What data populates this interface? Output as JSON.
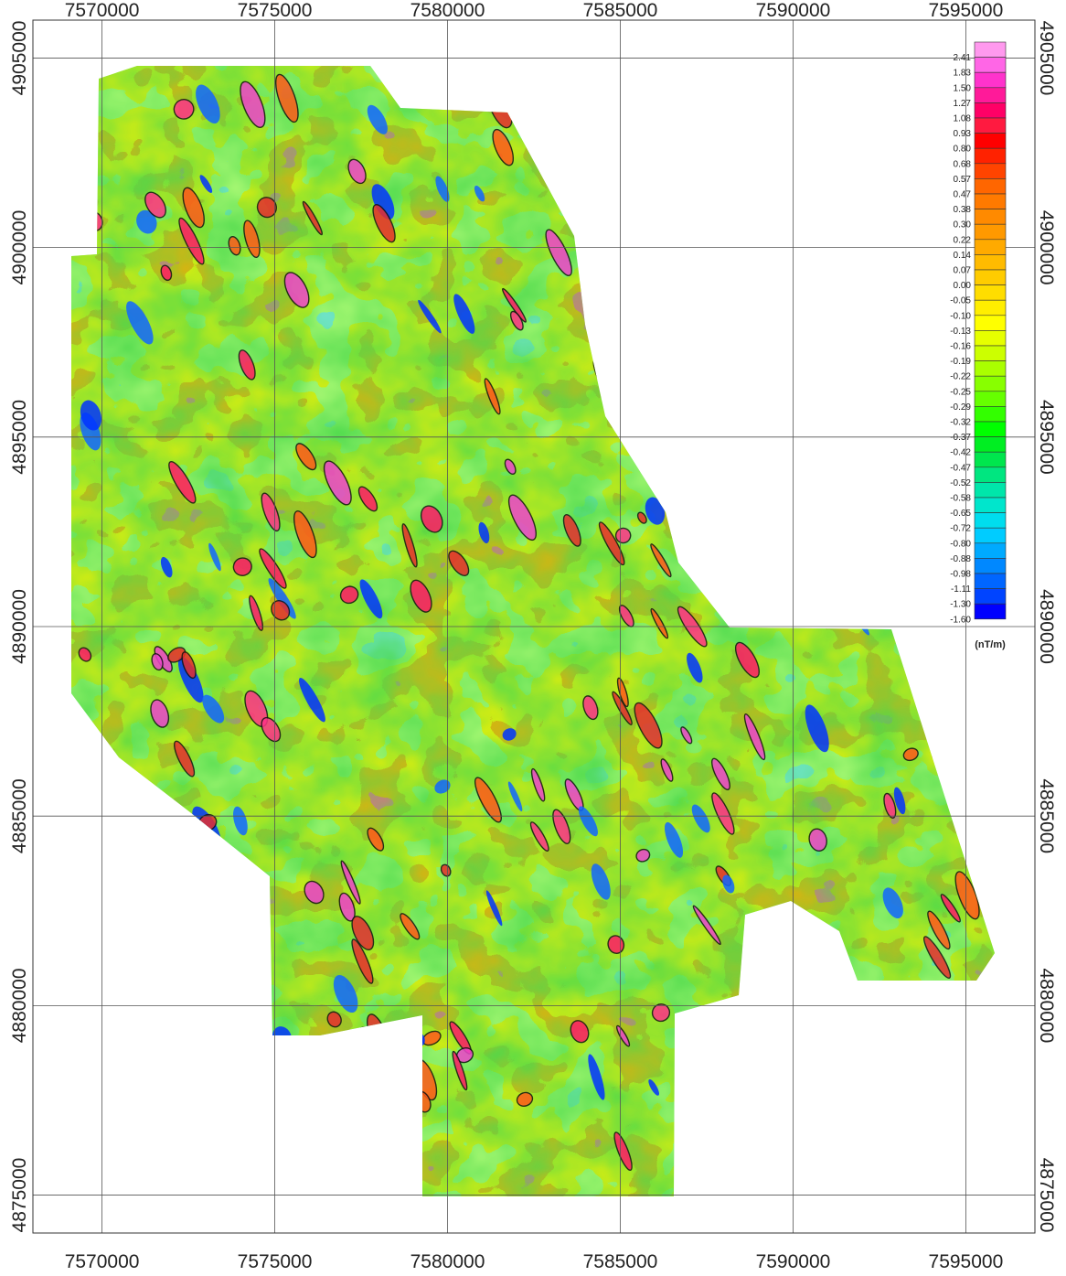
{
  "map": {
    "x_ticks": [
      "7570000",
      "7575000",
      "7580000",
      "7585000",
      "7590000",
      "7595000"
    ],
    "y_ticks": [
      "4905000",
      "4900000",
      "4895000",
      "4890000",
      "4885000",
      "4880000",
      "4875000"
    ],
    "x_range": [
      7568000,
      7597000
    ],
    "y_range": [
      4874000,
      4906000
    ],
    "grid": true
  },
  "legend": {
    "unit": "(nT/m)",
    "position": "top-right",
    "labels": [
      "2.41",
      "1.83",
      "1.50",
      "1.27",
      "1.08",
      "0.93",
      "0.80",
      "0.68",
      "0.57",
      "0.47",
      "0.38",
      "0.30",
      "0.22",
      "0.14",
      "0.07",
      "0.00",
      "-0.05",
      "-0.10",
      "-0.13",
      "-0.16",
      "-0.19",
      "-0.22",
      "-0.25",
      "-0.29",
      "-0.32",
      "-0.37",
      "-0.42",
      "-0.47",
      "-0.52",
      "-0.58",
      "-0.65",
      "-0.72",
      "-0.80",
      "-0.88",
      "-0.98",
      "-1.11",
      "-1.30",
      "-1.60"
    ],
    "colors": [
      "#ff99ee",
      "#ff66e6",
      "#ff33cc",
      "#ff1a99",
      "#ff0066",
      "#ff1a40",
      "#ff0000",
      "#ff2200",
      "#ff4400",
      "#ff6600",
      "#ff7a00",
      "#ff8a00",
      "#ff9900",
      "#ffaa00",
      "#ffbb00",
      "#ffcc00",
      "#ffdd00",
      "#ffee00",
      "#ffff00",
      "#e6ff00",
      "#ccff00",
      "#aaff00",
      "#88ff00",
      "#66ff00",
      "#33ff00",
      "#00ff00",
      "#00ee22",
      "#00e64d",
      "#00e680",
      "#00e6aa",
      "#00e6cc",
      "#00ddee",
      "#00ccff",
      "#00aaff",
      "#0088ff",
      "#0066ff",
      "#0044ff",
      "#0000ff"
    ]
  }
}
